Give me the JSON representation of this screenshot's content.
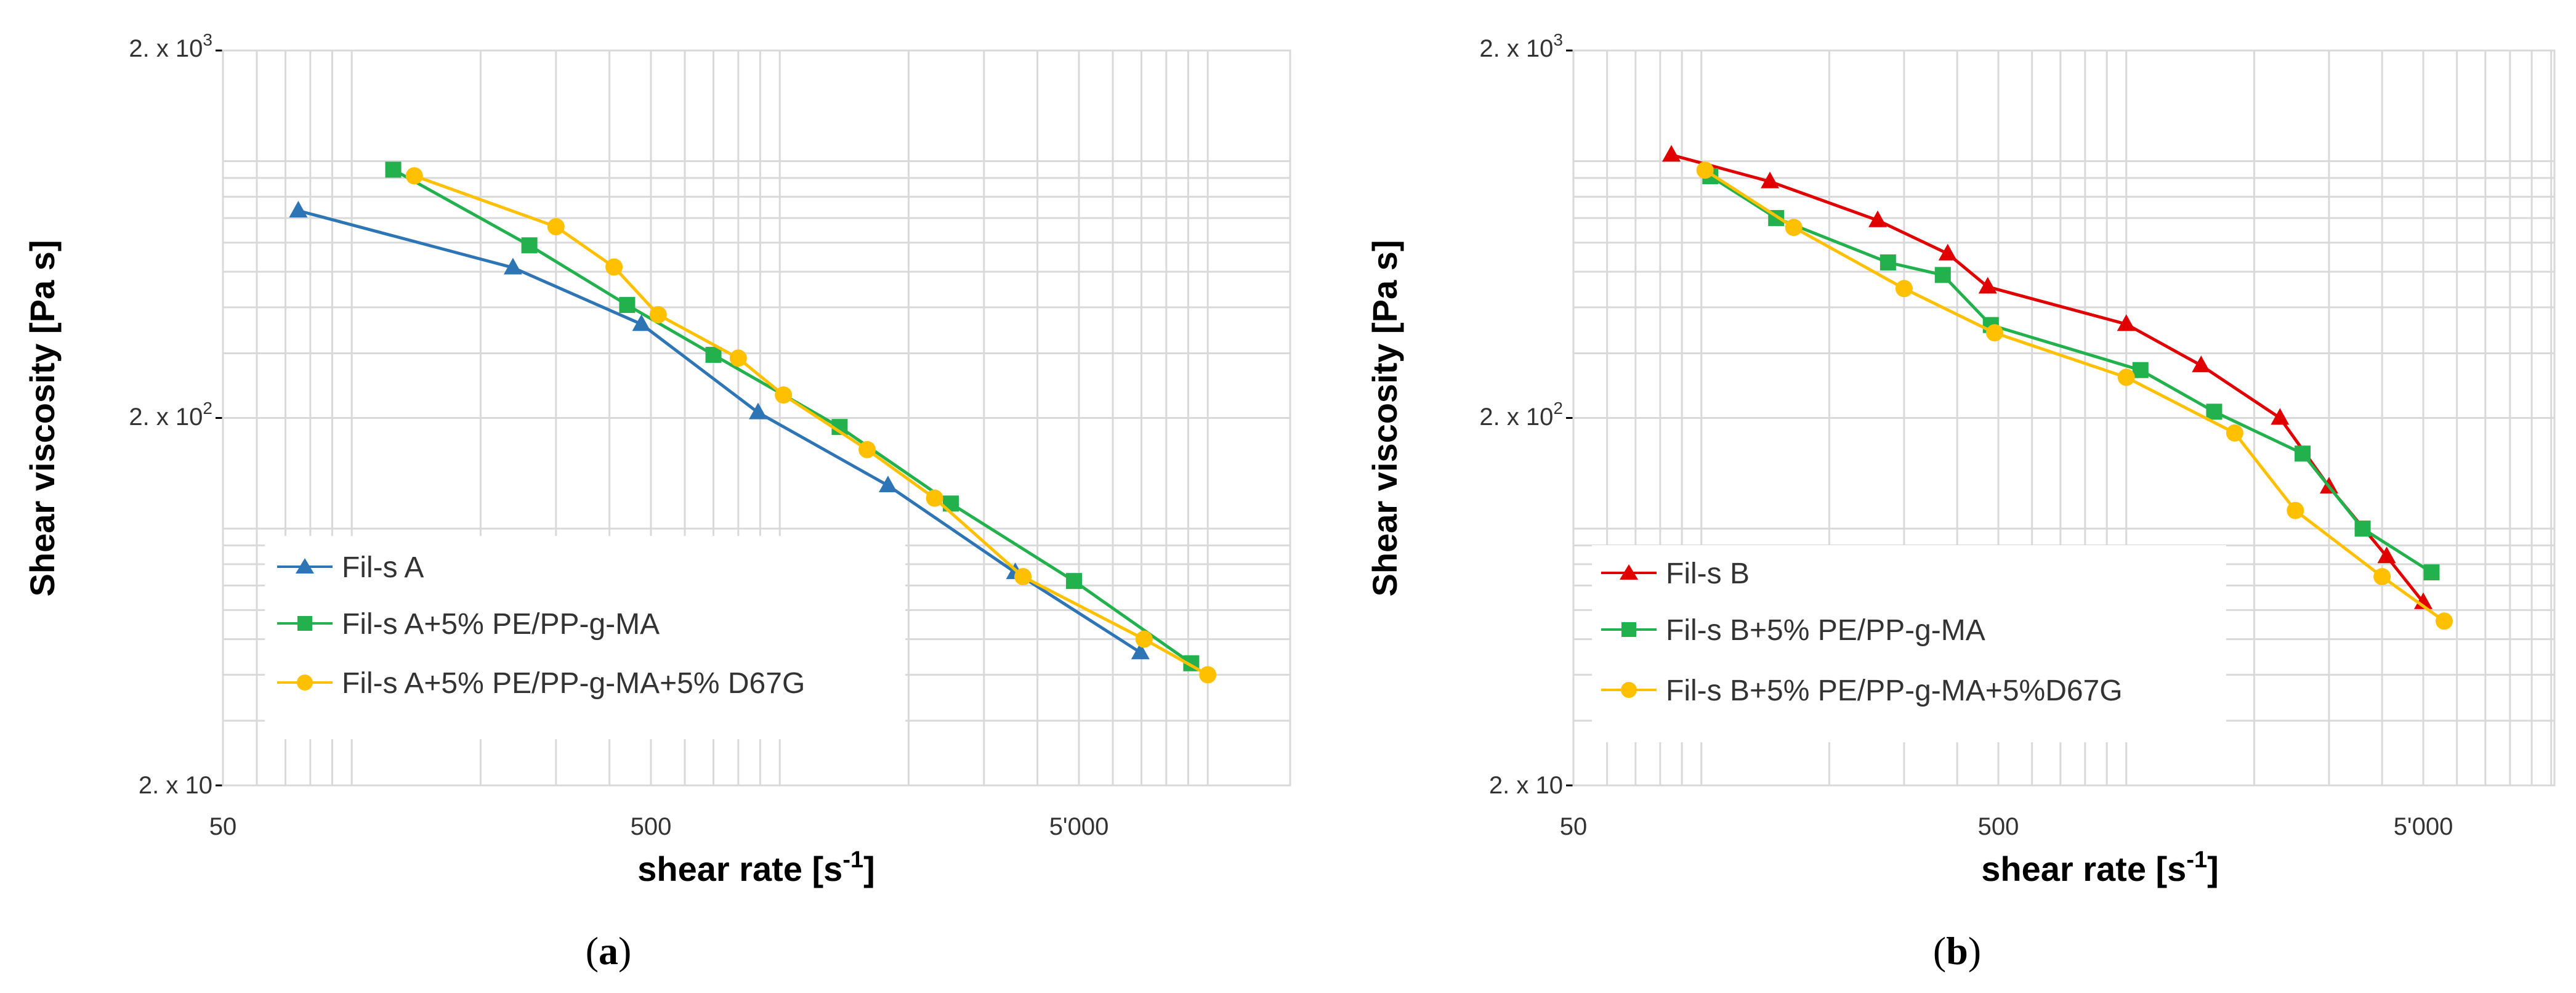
{
  "chart_data": [
    {
      "type": "line",
      "id": "a",
      "caption_letter": "a",
      "xlabel": "shear rate [s",
      "xlabel_sup": "-1",
      "xlabel_end": "]",
      "ylabel": "Shear viscosity [Pa s]",
      "xscale": "log",
      "yscale": "log",
      "xlim": [
        50,
        15000
      ],
      "ylim": [
        20,
        2000
      ],
      "xticks": [
        {
          "value": 50,
          "label": "50"
        },
        {
          "value": 500,
          "label": "500"
        },
        {
          "value": 5000,
          "label": "5'000"
        }
      ],
      "yticks": [
        {
          "value": 20,
          "label": "2. x 10"
        },
        {
          "value": 200,
          "label": "2. x 10",
          "sup": "2"
        },
        {
          "value": 2000,
          "label": "2. x 10",
          "sup": "3"
        }
      ],
      "legend_position": "bottom-left",
      "series": [
        {
          "name": "Fil-s A",
          "color": "#2e75b6",
          "marker": "triangle",
          "x": [
            75,
            238,
            475,
            890,
            1790,
            3550,
            6960
          ],
          "y": [
            733,
            513,
            360,
            207,
            131,
            76,
            46
          ]
        },
        {
          "name": "Fil-s A+5% PE/PP-g-MA",
          "color": "#22b14c",
          "marker": "square",
          "x": [
            125,
            260,
            440,
            700,
            1380,
            2510,
            4870,
            9150
          ],
          "y": [
            948,
            590,
            406,
            297,
            189,
            117,
            72,
            43
          ]
        },
        {
          "name": "Fil-s A+5% PE/PP-g-MA+5% D67G",
          "color": "#ffc000",
          "marker": "circle",
          "x": [
            140,
            300,
            410,
            520,
            800,
            1020,
            1600,
            2300,
            3700,
            7100,
            10000
          ],
          "y": [
            912,
            663,
            515,
            382,
            291,
            231,
            164,
            121,
            74,
            50,
            40
          ]
        }
      ]
    },
    {
      "type": "line",
      "id": "b",
      "caption_letter": "b",
      "xlabel": "shear rate [s",
      "xlabel_sup": "-1",
      "xlabel_end": "]",
      "ylabel": "Shear viscosity [Pa s]",
      "xscale": "log",
      "yscale": "log",
      "xlim": [
        50,
        15000
      ],
      "ylim": [
        20,
        2000
      ],
      "xticks": [
        {
          "value": 50,
          "label": "50"
        },
        {
          "value": 500,
          "label": "500"
        },
        {
          "value": 5000,
          "label": "5'000"
        }
      ],
      "yticks": [
        {
          "value": 20,
          "label": "2. x 10"
        },
        {
          "value": 200,
          "label": "2. x 10",
          "sup": "2"
        },
        {
          "value": 2000,
          "label": "2. x 10",
          "sup": "3"
        }
      ],
      "legend_position": "bottom-left",
      "series": [
        {
          "name": "Fil-s B",
          "color": "#e00000",
          "marker": "triangle",
          "x": [
            85,
            145,
            260,
            380,
            472,
            1000,
            1500,
            2300,
            3000,
            4100,
            5000
          ],
          "y": [
            1040,
            880,
            690,
            560,
            455,
            360,
            278,
            200,
            130,
            84,
            63
          ]
        },
        {
          "name": "Fil-s B+5% PE/PP-g-MA",
          "color": "#22b14c",
          "marker": "square",
          "x": [
            105,
            150,
            275,
            370,
            480,
            1080,
            1610,
            2600,
            3600,
            5230
          ],
          "y": [
            910,
            700,
            530,
            490,
            358,
            270,
            208,
            160,
            100,
            76
          ]
        },
        {
          "name": "Fil-s B+5% PE/PP-g-MA+5%D67G",
          "color": "#ffc000",
          "marker": "circle",
          "x": [
            102,
            165,
            300,
            490,
            1000,
            1800,
            2500,
            4000,
            5600
          ],
          "y": [
            945,
            660,
            450,
            341,
            258,
            182,
            112,
            74,
            56
          ]
        }
      ]
    }
  ]
}
